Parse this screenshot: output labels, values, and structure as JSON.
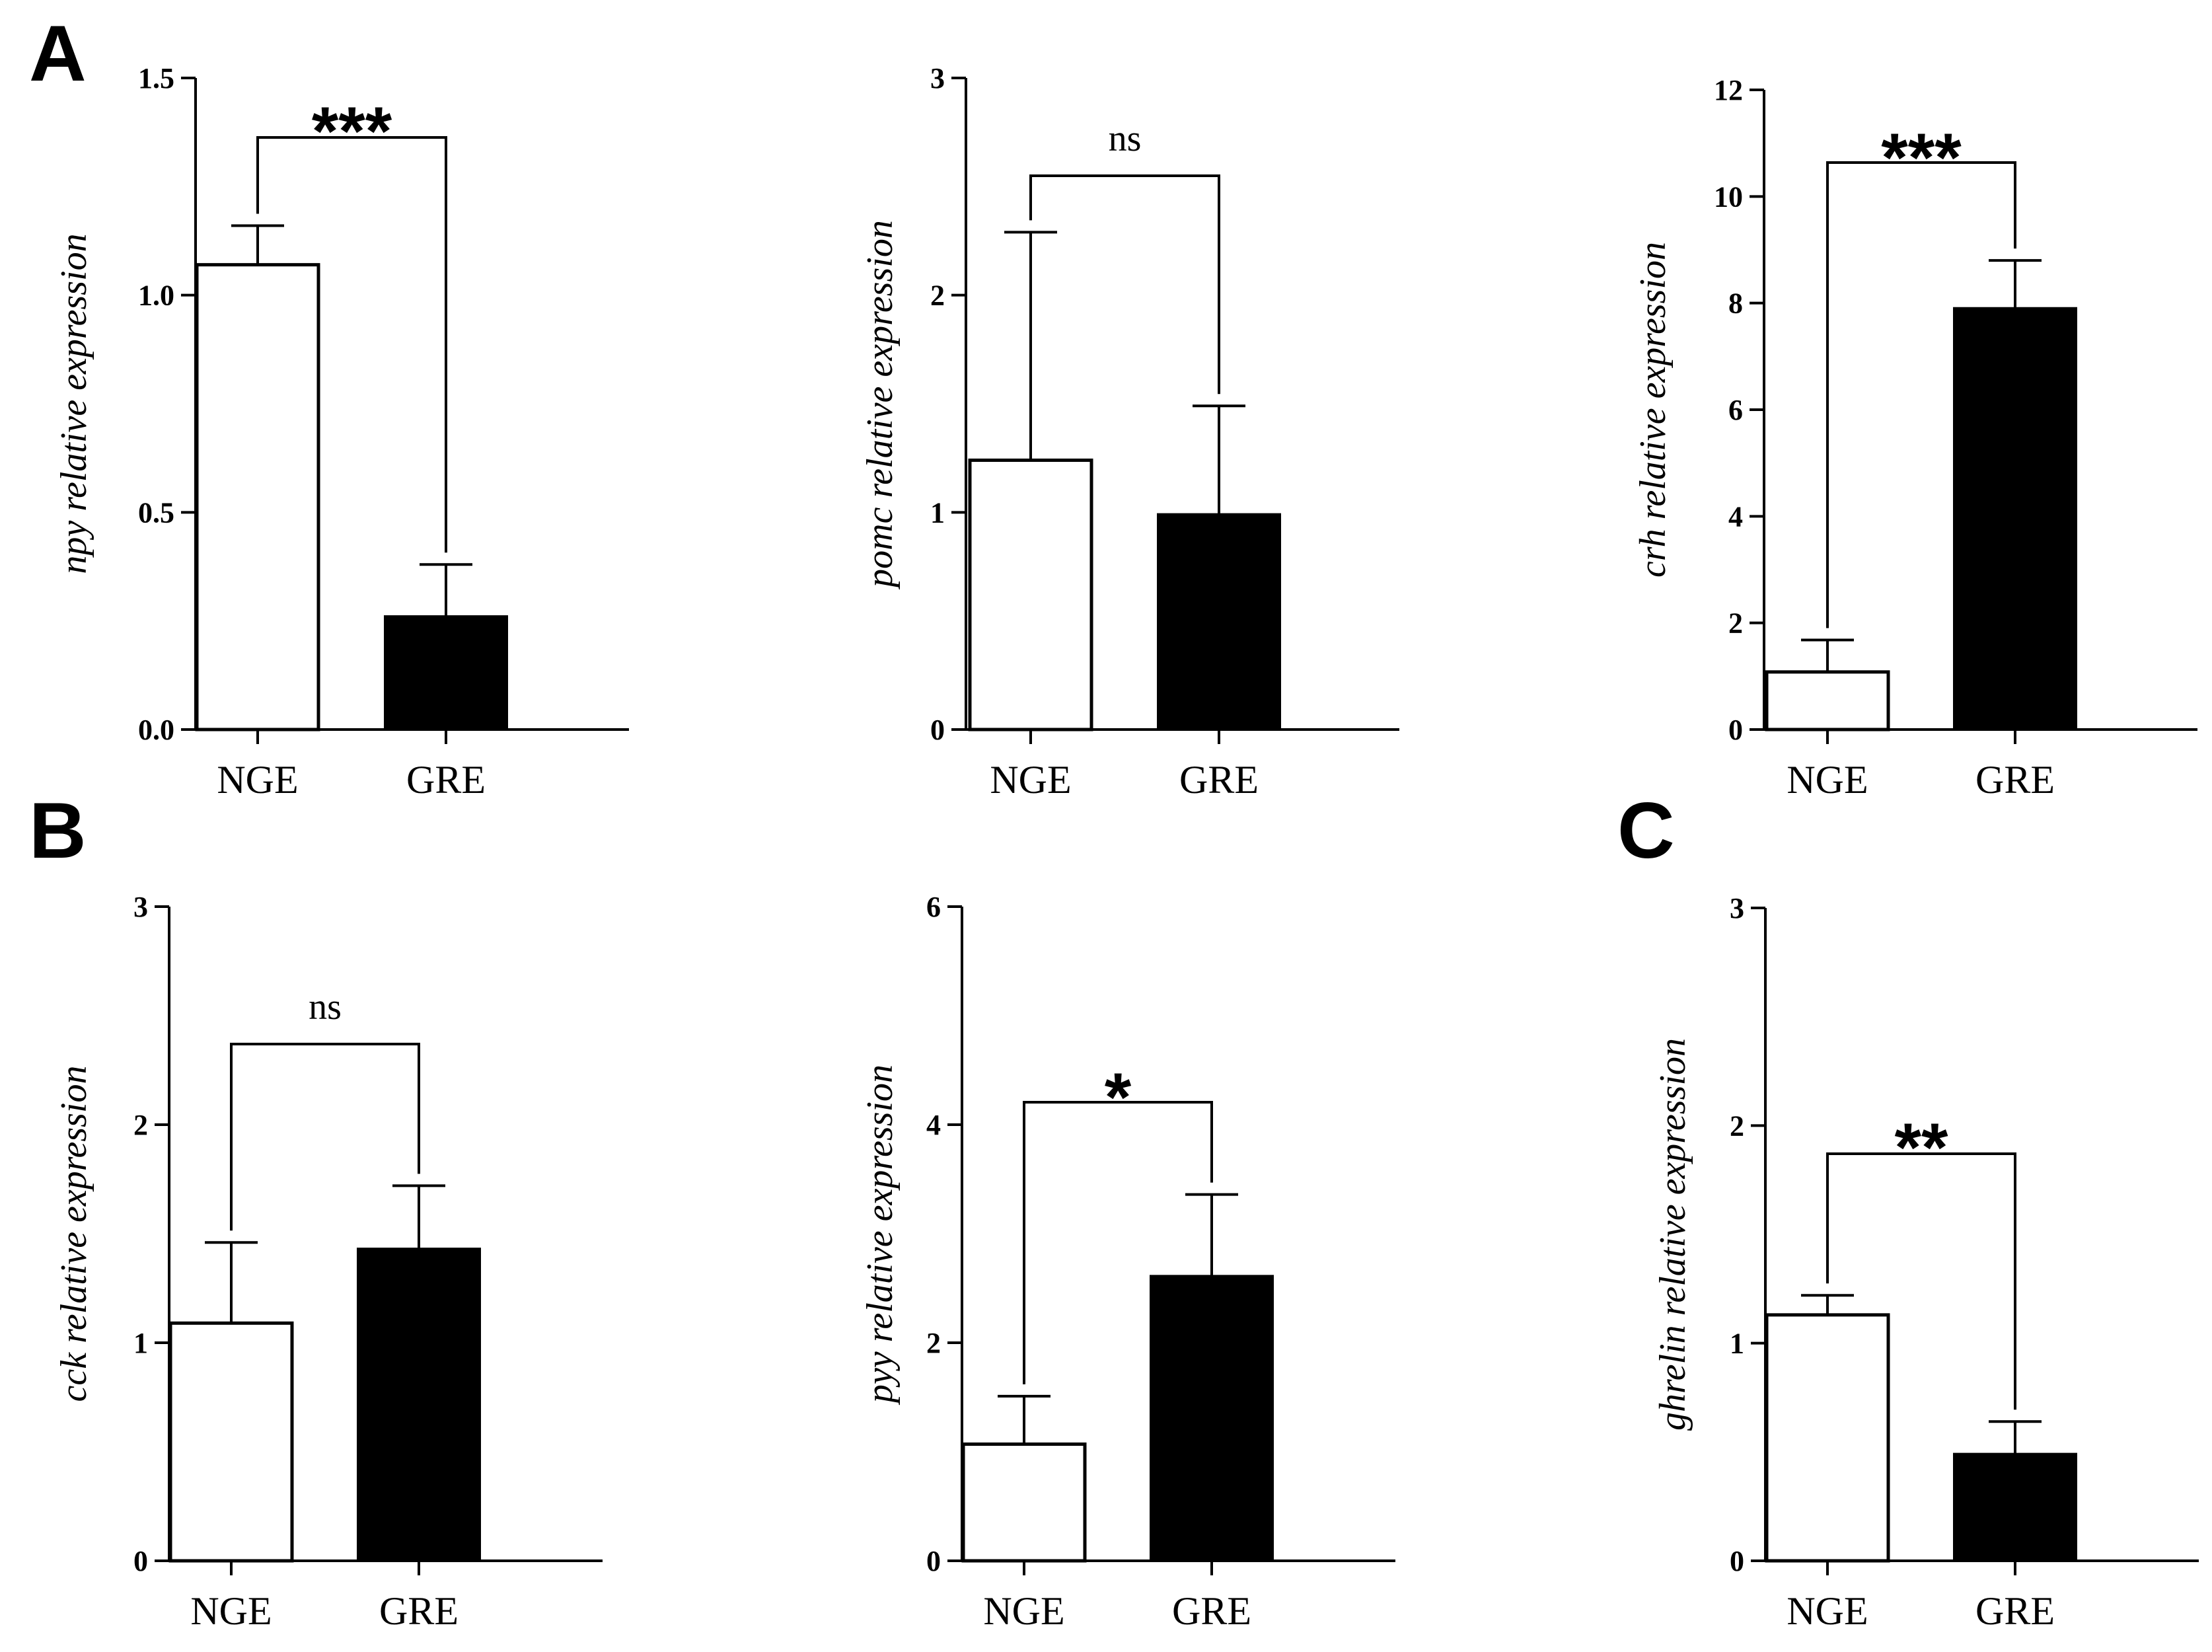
{
  "panel_labels": [
    "A",
    "B",
    "C"
  ],
  "chart_data": [
    {
      "type": "bar",
      "panel": "A",
      "categories": [
        "NGE",
        "GRE"
      ],
      "values": [
        1.07,
        0.26
      ],
      "errors": [
        0.09,
        0.12
      ],
      "bar_colors": [
        "#ffffff",
        "#000000"
      ],
      "ylabel": "npy relative expression",
      "ylim": [
        0,
        1.5
      ],
      "yticks": [
        0.0,
        0.5,
        1.0,
        1.5
      ],
      "ytick_labels": [
        "0.0",
        "0.5",
        "1.0",
        "1.5"
      ],
      "significance": "***"
    },
    {
      "type": "bar",
      "panel": "A",
      "categories": [
        "NGE",
        "GRE"
      ],
      "values": [
        1.24,
        0.99
      ],
      "errors": [
        1.05,
        0.5
      ],
      "bar_colors": [
        "#ffffff",
        "#000000"
      ],
      "ylabel": "pomc relative expression",
      "ylim": [
        0,
        3
      ],
      "yticks": [
        0,
        1,
        2,
        3
      ],
      "ytick_labels": [
        "0",
        "1",
        "2",
        "3"
      ],
      "significance": "ns"
    },
    {
      "type": "bar",
      "panel": "A",
      "categories": [
        "NGE",
        "GRE"
      ],
      "values": [
        1.08,
        7.9
      ],
      "errors": [
        0.6,
        0.9
      ],
      "bar_colors": [
        "#ffffff",
        "#000000"
      ],
      "ylabel": "crh relative expression",
      "ylim": [
        0,
        12
      ],
      "yticks": [
        0,
        2,
        4,
        6,
        8,
        10,
        12
      ],
      "ytick_labels": [
        "0",
        "2",
        "4",
        "6",
        "8",
        "10",
        "12"
      ],
      "significance": "***"
    },
    {
      "type": "bar",
      "panel": "B",
      "categories": [
        "NGE",
        "GRE"
      ],
      "values": [
        1.09,
        1.43
      ],
      "errors": [
        0.37,
        0.29
      ],
      "bar_colors": [
        "#ffffff",
        "#000000"
      ],
      "ylabel": "cck relative expression",
      "ylim": [
        0,
        3
      ],
      "yticks": [
        0,
        1,
        2,
        3
      ],
      "ytick_labels": [
        "0",
        "1",
        "2",
        "3"
      ],
      "significance": "ns"
    },
    {
      "type": "bar",
      "panel": "B",
      "categories": [
        "NGE",
        "GRE"
      ],
      "values": [
        1.07,
        2.61
      ],
      "errors": [
        0.44,
        0.75
      ],
      "bar_colors": [
        "#ffffff",
        "#000000"
      ],
      "ylabel": "pyy relative expression",
      "ylim": [
        0,
        6
      ],
      "yticks": [
        0,
        2,
        4,
        6
      ],
      "ytick_labels": [
        "0",
        "2",
        "4",
        "6"
      ],
      "significance": "*"
    },
    {
      "type": "bar",
      "panel": "C",
      "categories": [
        "NGE",
        "GRE"
      ],
      "values": [
        1.13,
        0.49
      ],
      "errors": [
        0.09,
        0.15
      ],
      "bar_colors": [
        "#ffffff",
        "#000000"
      ],
      "ylabel": "ghrelin relative expression",
      "ylim": [
        0,
        3
      ],
      "yticks": [
        0,
        1,
        2,
        3
      ],
      "ytick_labels": [
        "0",
        "1",
        "2",
        "3"
      ],
      "significance": "**"
    }
  ]
}
